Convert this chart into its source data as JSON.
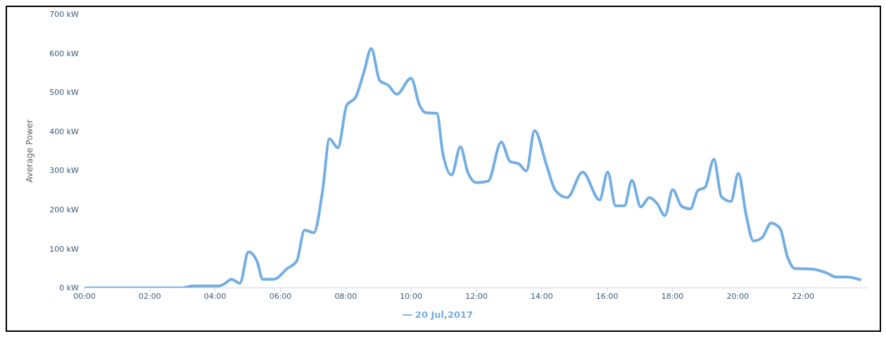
{
  "chart_data": {
    "type": "line",
    "ylabel": "Average Power",
    "legend": "bottom",
    "grid": false,
    "marker": "none",
    "line_style": "solid",
    "xlim": [
      0,
      24
    ],
    "xticks": [
      {
        "value": 0,
        "label": "00:00"
      },
      {
        "value": 2,
        "label": "02:00"
      },
      {
        "value": 4,
        "label": "04:00"
      },
      {
        "value": 6,
        "label": "06:00"
      },
      {
        "value": 8,
        "label": "08:00"
      },
      {
        "value": 10,
        "label": "10:00"
      },
      {
        "value": 12,
        "label": "12:00"
      },
      {
        "value": 14,
        "label": "14:00"
      },
      {
        "value": 16,
        "label": "16:00"
      },
      {
        "value": 18,
        "label": "18:00"
      },
      {
        "value": 20,
        "label": "20:00"
      },
      {
        "value": 22,
        "label": "22:00"
      }
    ],
    "ylim": [
      0,
      700
    ],
    "yticks": [
      {
        "value": 0,
        "label": "0 kW"
      },
      {
        "value": 100,
        "label": "100 kW"
      },
      {
        "value": 200,
        "label": "200 kW"
      },
      {
        "value": 300,
        "label": "300 kW"
      },
      {
        "value": 400,
        "label": "400 kW"
      },
      {
        "value": 500,
        "label": "500 kW"
      },
      {
        "value": 600,
        "label": "600 kW"
      },
      {
        "value": 700,
        "label": "700 kW"
      }
    ],
    "x": [
      0,
      2.97,
      3.32,
      4.1,
      4.28,
      4.5,
      4.76,
      5.02,
      5.28,
      5.46,
      5.8,
      6.2,
      6.5,
      6.74,
      7.02,
      7.29,
      7.5,
      7.76,
      8.03,
      8.3,
      8.56,
      8.78,
      9.04,
      9.3,
      9.56,
      10.0,
      10.26,
      10.44,
      10.79,
      10.97,
      11.24,
      11.51,
      11.73,
      12.0,
      12.36,
      12.76,
      13.03,
      13.3,
      13.53,
      13.78,
      14.15,
      14.42,
      14.78,
      15.25,
      15.77,
      16.02,
      16.26,
      16.53,
      16.76,
      17.03,
      17.29,
      17.52,
      17.77,
      18.01,
      18.28,
      18.55,
      18.78,
      19.0,
      19.27,
      19.5,
      19.79,
      20.02,
      20.26,
      20.48,
      20.75,
      21.02,
      21.29,
      21.52,
      21.74,
      22.28,
      22.73,
      23.0,
      23.36,
      23.78
    ],
    "series": [
      {
        "name": "20 Jul,2017",
        "color": "#74aee3",
        "values": [
          0,
          0,
          5,
          5,
          10,
          22,
          12,
          92,
          69,
          22,
          22,
          49,
          69,
          148,
          141,
          248,
          381,
          358,
          467,
          487,
          553,
          612,
          530,
          518,
          495,
          536,
          467,
          448,
          446,
          345,
          289,
          361,
          297,
          269,
          273,
          373,
          323,
          317,
          299,
          402,
          313,
          249,
          231,
          296,
          225,
          296,
          210,
          210,
          275,
          207,
          231,
          217,
          185,
          251,
          209,
          202,
          249,
          257,
          329,
          233,
          221,
          293,
          185,
          120,
          129,
          166,
          153,
          80,
          50,
          48,
          38,
          28,
          28,
          20
        ]
      }
    ]
  }
}
